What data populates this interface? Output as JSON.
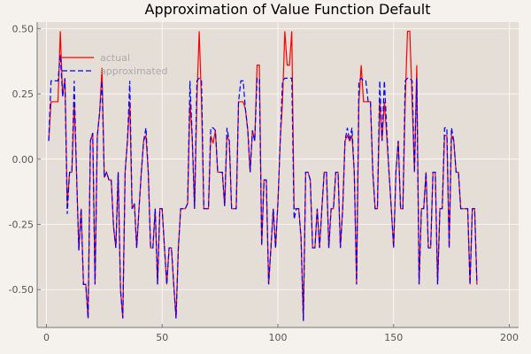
{
  "chart_data": {
    "type": "line",
    "title": "Approximation of Value Function Default",
    "xlabel": "",
    "ylabel": "",
    "xlim": [
      -4,
      204
    ],
    "ylim": [
      -0.645,
      0.525
    ],
    "x_ticks": [
      0,
      50,
      100,
      150,
      200
    ],
    "y_ticks": [
      -0.5,
      -0.25,
      0.0,
      0.25,
      0.5
    ],
    "x_tick_labels": [
      "0",
      "50",
      "100",
      "150",
      "200"
    ],
    "y_tick_labels": [
      "-0.50",
      "-0.25",
      "0.00",
      "0.25",
      "0.50"
    ],
    "grid": true,
    "legend_position": "top-left",
    "series": [
      {
        "name": "actual",
        "color": "#ff0000",
        "dash": "solid",
        "values": [
          0.07,
          0.22,
          0.22,
          0.22,
          0.22,
          0.49,
          0.24,
          0.31,
          -0.17,
          -0.05,
          -0.05,
          0.22,
          -0.05,
          -0.35,
          -0.19,
          -0.48,
          -0.48,
          -0.61,
          0.07,
          0.1,
          -0.48,
          0.09,
          0.18,
          0.35,
          -0.07,
          -0.05,
          -0.08,
          -0.08,
          -0.26,
          -0.34,
          -0.05,
          -0.5,
          -0.61,
          -0.05,
          0.07,
          0.22,
          -0.19,
          -0.17,
          -0.34,
          -0.19,
          -0.05,
          0.07,
          0.09,
          -0.05,
          -0.34,
          -0.34,
          -0.19,
          -0.48,
          -0.19,
          -0.19,
          -0.34,
          -0.48,
          -0.34,
          -0.34,
          -0.48,
          -0.61,
          -0.34,
          -0.19,
          -0.19,
          -0.19,
          -0.17,
          0.22,
          0.08,
          -0.19,
          0.22,
          0.49,
          0.22,
          -0.19,
          -0.19,
          -0.19,
          0.09,
          0.06,
          0.11,
          -0.05,
          -0.05,
          -0.05,
          -0.18,
          0.09,
          0.07,
          -0.19,
          -0.19,
          -0.19,
          0.22,
          0.22,
          0.22,
          0.19,
          0.11,
          -0.05,
          0.11,
          0.07,
          0.36,
          0.36,
          -0.33,
          -0.08,
          -0.08,
          -0.48,
          -0.34,
          -0.19,
          -0.34,
          -0.17,
          0.07,
          0.22,
          0.49,
          0.36,
          0.36,
          0.49,
          -0.19,
          -0.19,
          -0.19,
          -0.3,
          -0.62,
          -0.05,
          -0.05,
          -0.08,
          -0.34,
          -0.34,
          -0.19,
          -0.34,
          -0.19,
          -0.05,
          -0.05,
          -0.34,
          -0.19,
          -0.19,
          -0.05,
          -0.05,
          -0.34,
          -0.19,
          0.07,
          0.09,
          0.07,
          0.09,
          -0.05,
          -0.48,
          0.22,
          0.36,
          0.22,
          0.22,
          0.22,
          0.22,
          -0.05,
          -0.19,
          -0.19,
          0.22,
          0.07,
          0.22,
          0.09,
          -0.05,
          -0.19,
          -0.34,
          -0.05,
          0.07,
          -0.19,
          -0.19,
          0.22,
          0.49,
          0.49,
          0.22,
          -0.05,
          0.36,
          -0.48,
          -0.19,
          -0.19,
          -0.05,
          -0.34,
          -0.34,
          -0.05,
          -0.05,
          -0.48,
          -0.19,
          -0.19,
          0.09,
          0.09,
          -0.34,
          0.09,
          0.07,
          -0.05,
          -0.05,
          -0.19,
          -0.19,
          -0.19,
          -0.19,
          -0.48,
          -0.19,
          -0.19,
          -0.48
        ],
        "x_start": 1
      },
      {
        "name": "approximated",
        "color": "#0000ff",
        "dash": "dashed",
        "values": [
          0.07,
          0.3,
          0.3,
          0.3,
          0.3,
          0.4,
          0.24,
          0.31,
          -0.21,
          -0.05,
          -0.05,
          0.3,
          -0.05,
          -0.35,
          -0.19,
          -0.48,
          -0.48,
          -0.61,
          0.07,
          0.1,
          -0.48,
          0.09,
          0.18,
          0.3,
          -0.07,
          -0.05,
          -0.08,
          -0.08,
          -0.26,
          -0.34,
          -0.05,
          -0.5,
          -0.61,
          -0.05,
          0.07,
          0.3,
          -0.19,
          -0.17,
          -0.34,
          -0.19,
          -0.05,
          0.07,
          0.12,
          -0.05,
          -0.34,
          -0.34,
          -0.19,
          -0.48,
          -0.19,
          -0.19,
          -0.34,
          -0.48,
          -0.34,
          -0.34,
          -0.48,
          -0.61,
          -0.34,
          -0.19,
          -0.19,
          -0.19,
          -0.17,
          0.3,
          0.08,
          -0.19,
          0.3,
          0.31,
          0.3,
          -0.19,
          -0.19,
          -0.19,
          0.12,
          0.12,
          0.11,
          -0.05,
          -0.05,
          -0.05,
          -0.18,
          0.12,
          0.07,
          -0.19,
          -0.19,
          -0.19,
          0.22,
          0.3,
          0.3,
          0.19,
          0.11,
          -0.05,
          0.11,
          0.07,
          0.31,
          0.31,
          -0.33,
          -0.08,
          -0.08,
          -0.48,
          -0.34,
          -0.19,
          -0.34,
          -0.17,
          0.07,
          0.3,
          0.31,
          0.31,
          0.31,
          0.31,
          -0.23,
          -0.19,
          -0.19,
          -0.3,
          -0.62,
          -0.05,
          -0.05,
          -0.08,
          -0.34,
          -0.34,
          -0.19,
          -0.34,
          -0.19,
          -0.05,
          -0.05,
          -0.34,
          -0.19,
          -0.19,
          -0.05,
          -0.05,
          -0.34,
          -0.19,
          0.07,
          0.12,
          0.07,
          0.12,
          -0.05,
          -0.48,
          0.3,
          0.31,
          0.3,
          0.3,
          0.22,
          0.22,
          -0.05,
          -0.19,
          -0.19,
          0.3,
          0.07,
          0.3,
          0.12,
          -0.05,
          -0.19,
          -0.34,
          -0.05,
          0.07,
          -0.19,
          -0.19,
          0.3,
          0.31,
          0.31,
          0.3,
          -0.05,
          0.31,
          -0.48,
          -0.19,
          -0.19,
          -0.05,
          -0.34,
          -0.34,
          -0.05,
          -0.05,
          -0.48,
          -0.19,
          -0.19,
          0.12,
          0.12,
          -0.34,
          0.12,
          0.07,
          -0.05,
          -0.05,
          -0.19,
          -0.19,
          -0.19,
          -0.19,
          -0.48,
          -0.19,
          -0.19,
          -0.48
        ],
        "x_start": 1
      }
    ]
  },
  "style": {
    "background": "#f5f2ee",
    "plot_background": "#e5ded6",
    "grid_color": "#ffffff",
    "axis_text_color": "#555555",
    "title_color": "#000000",
    "legend_text_color": "#aaaaaa"
  }
}
